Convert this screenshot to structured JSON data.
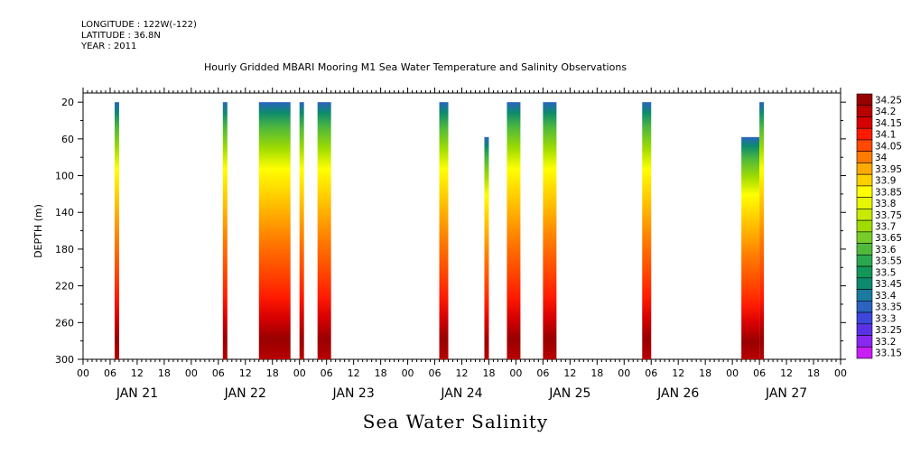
{
  "meta": {
    "longitude": "LONGITUDE : 122W(-122)",
    "latitude": "LATITUDE : 36.8N",
    "year": "YEAR : 2011"
  },
  "chart_data": {
    "type": "heatmap",
    "title": "Hourly Gridded MBARI Mooring M1 Sea Water Temperature and Salinity Observations",
    "caption": "Sea Water Salinity",
    "ylabel": "DEPTH (m)",
    "xlabel": "",
    "x_range_hours": [
      0,
      168
    ],
    "ylim": [
      300,
      10
    ],
    "y_ticks": [
      20,
      60,
      100,
      140,
      180,
      220,
      260,
      300
    ],
    "x_hour_ticks": [
      "00",
      "06",
      "12",
      "18",
      "00",
      "06",
      "12",
      "18",
      "00",
      "06",
      "12",
      "18",
      "00",
      "06",
      "12",
      "18",
      "00",
      "06",
      "12",
      "18",
      "00",
      "06",
      "12",
      "18",
      "00",
      "06",
      "12",
      "18",
      "00"
    ],
    "day_labels": [
      "JAN 21",
      "JAN 22",
      "JAN 23",
      "JAN 24",
      "JAN 25",
      "JAN 26",
      "JAN 27"
    ],
    "colorbar": {
      "levels": [
        "34.25",
        "34.2",
        "34.15",
        "34.1",
        "34.05",
        "34",
        "33.95",
        "33.9",
        "33.85",
        "33.8",
        "33.75",
        "33.7",
        "33.65",
        "33.6",
        "33.55",
        "33.5",
        "33.45",
        "33.4",
        "33.35",
        "33.3",
        "33.25",
        "33.2",
        "33.15"
      ],
      "colors": [
        "#990000",
        "#b80000",
        "#d60000",
        "#ff1a00",
        "#ff4800",
        "#ff7a00",
        "#ffaa00",
        "#ffd000",
        "#ffff00",
        "#e6f500",
        "#c8ea00",
        "#a0dc00",
        "#78cc2a",
        "#50b93c",
        "#2aa84e",
        "#12965a",
        "#0c8a6e",
        "#1a7aa0",
        "#2a64c0",
        "#3c48dc",
        "#5a32e6",
        "#8a28f0",
        "#c81ef5"
      ]
    },
    "series": [
      {
        "start_hour": 7,
        "end_hour": 8,
        "top": 20,
        "bottom": 300
      },
      {
        "start_hour": 31,
        "end_hour": 32,
        "top": 20,
        "bottom": 300
      },
      {
        "start_hour": 39,
        "end_hour": 46,
        "top": 20,
        "bottom": 300
      },
      {
        "start_hour": 48,
        "end_hour": 49,
        "top": 20,
        "bottom": 300
      },
      {
        "start_hour": 52,
        "end_hour": 55,
        "top": 20,
        "bottom": 300
      },
      {
        "start_hour": 79,
        "end_hour": 81,
        "top": 20,
        "bottom": 300
      },
      {
        "start_hour": 89,
        "end_hour": 90,
        "top": 58,
        "bottom": 300
      },
      {
        "start_hour": 94,
        "end_hour": 97,
        "top": 20,
        "bottom": 300
      },
      {
        "start_hour": 102,
        "end_hour": 105,
        "top": 20,
        "bottom": 300
      },
      {
        "start_hour": 124,
        "end_hour": 126,
        "top": 20,
        "bottom": 300
      },
      {
        "start_hour": 146,
        "end_hour": 150,
        "top": 58,
        "bottom": 300
      },
      {
        "start_hour": 150,
        "end_hour": 151,
        "top": 20,
        "bottom": 300
      }
    ]
  }
}
